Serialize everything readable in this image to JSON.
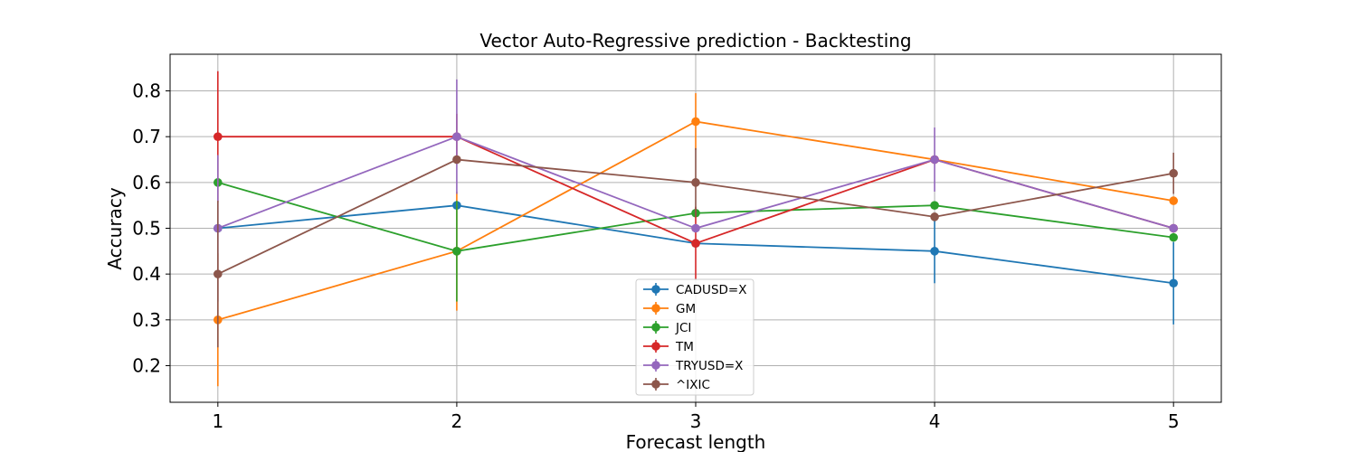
{
  "chart_data": {
    "type": "line",
    "title": "Vector Auto-Regressive prediction - Backtesting",
    "xlabel": "Forecast length",
    "ylabel": "Accuracy",
    "x": [
      1,
      2,
      3,
      4,
      5
    ],
    "xlim": [
      0.8,
      5.2
    ],
    "ylim": [
      0.12,
      0.88
    ],
    "xticks": [
      "1",
      "2",
      "3",
      "4",
      "5"
    ],
    "yticks": [
      "0.2",
      "0.3",
      "0.4",
      "0.5",
      "0.6",
      "0.7",
      "0.8"
    ],
    "grid": true,
    "legend_position": "bottom-center",
    "series": [
      {
        "name": "CADUSD=X",
        "color": "#1f77b4",
        "values": [
          0.5,
          0.55,
          0.467,
          0.45,
          0.38
        ],
        "errors": [
          0.0,
          0.0,
          0.0,
          0.07,
          0.09
        ]
      },
      {
        "name": "GM",
        "color": "#ff7f0e",
        "values": [
          0.3,
          0.45,
          0.733,
          0.65,
          0.56
        ],
        "errors": [
          0.145,
          0.13,
          0.062,
          0.0,
          0.0
        ]
      },
      {
        "name": "JCI",
        "color": "#2ca02c",
        "values": [
          0.6,
          0.45,
          0.533,
          0.55,
          0.48
        ],
        "errors": [
          0.0,
          0.11,
          0.0,
          0.0,
          0.0
        ]
      },
      {
        "name": "TM",
        "color": "#d62728",
        "values": [
          0.7,
          0.7,
          0.467,
          0.65,
          0.5
        ],
        "errors": [
          0.143,
          0.05,
          0.08,
          0.0,
          0.0
        ]
      },
      {
        "name": "TRYUSD=X",
        "color": "#9467bd",
        "values": [
          0.5,
          0.7,
          0.5,
          0.65,
          0.5
        ],
        "errors": [
          0.16,
          0.125,
          0.0,
          0.07,
          0.0
        ]
      },
      {
        "name": "^IXIC",
        "color": "#8c564b",
        "values": [
          0.4,
          0.65,
          0.6,
          0.525,
          0.62
        ],
        "errors": [
          0.16,
          0.0,
          0.075,
          0.0,
          0.045
        ]
      }
    ]
  }
}
